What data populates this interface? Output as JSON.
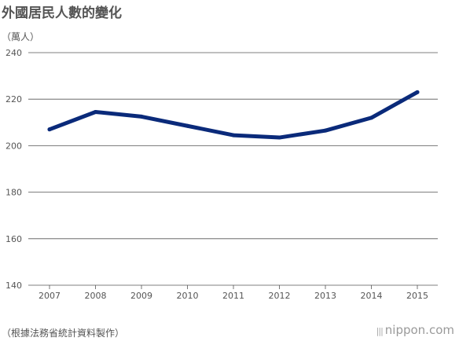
{
  "chart_data": {
    "type": "line",
    "title": "外國居民人數的變化",
    "ylabel": "（萬人）",
    "xlabel": "",
    "categories": [
      "2007",
      "2008",
      "2009",
      "2010",
      "2011",
      "2012",
      "2013",
      "2014",
      "2015"
    ],
    "series": [
      {
        "values": [
          207,
          214.5,
          212.5,
          208.5,
          204.5,
          203.5,
          206.5,
          212,
          223
        ]
      }
    ],
    "ylim": [
      140,
      240
    ],
    "yticks": [
      "140",
      "160",
      "180",
      "200",
      "220",
      "240"
    ],
    "grid": true,
    "line_color": "#0a2a7a",
    "grid_color": "#555555"
  },
  "source": "（根據法務省統計資料製作）",
  "brand": "nippon.com"
}
